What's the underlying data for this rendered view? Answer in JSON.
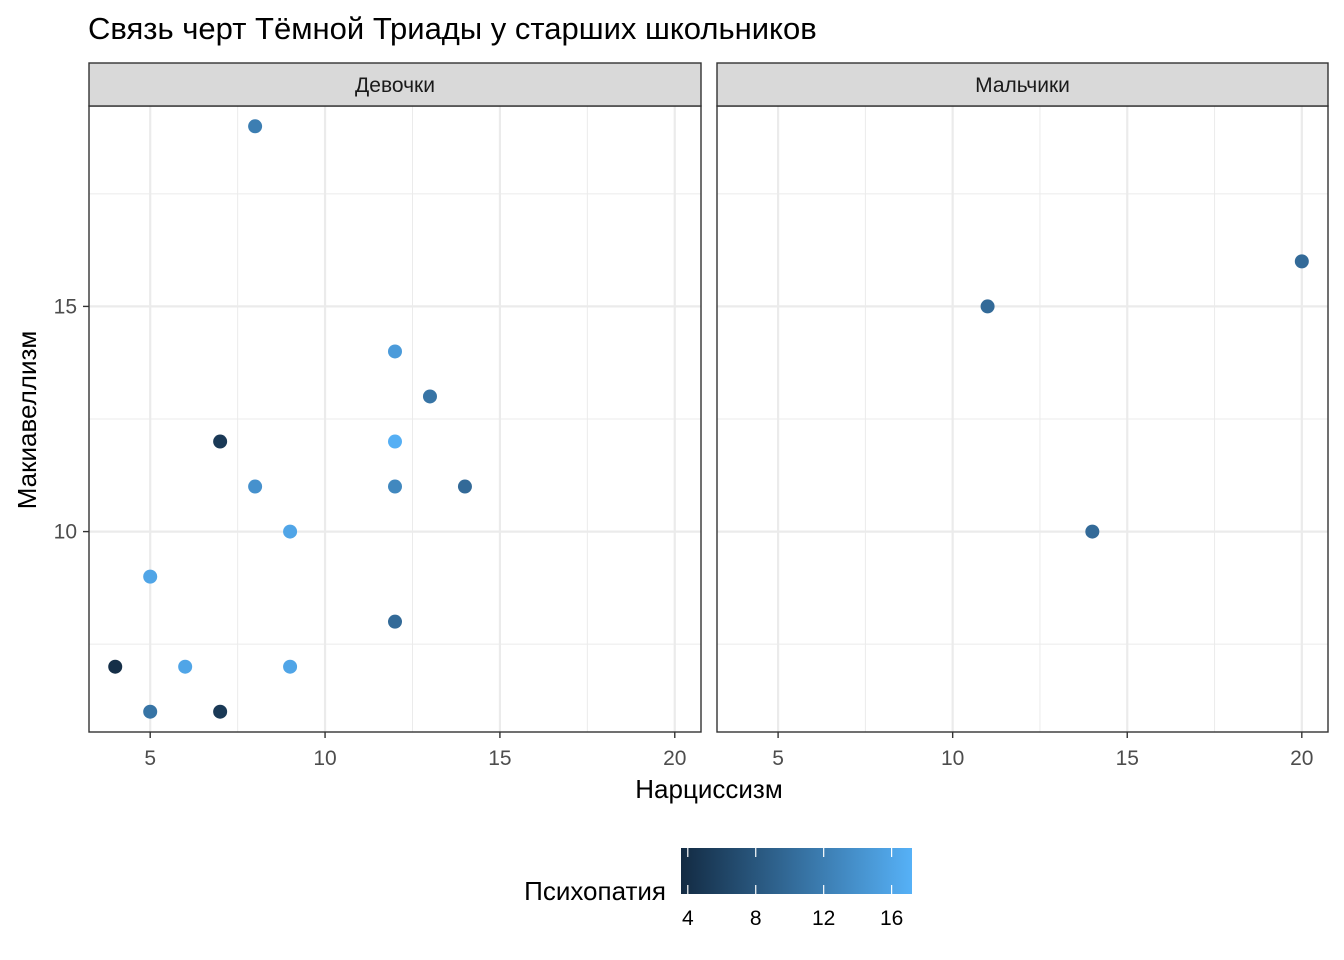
{
  "chart_data": {
    "type": "scatter",
    "title": "Связь черт Тёмной Триады у старших школьников",
    "xlabel": "Нарциссизм",
    "ylabel": "Макиавеллизм",
    "xlim": [
      3.25,
      20.75
    ],
    "ylim": [
      5.55,
      19.45
    ],
    "x_ticks": [
      5,
      10,
      15,
      20
    ],
    "y_ticks": [
      10,
      15
    ],
    "grid": true,
    "facets": [
      {
        "label": "Девочки",
        "points": [
          {
            "x": 8,
            "y": 19,
            "color_value": 12
          },
          {
            "x": 12,
            "y": 14,
            "color_value": 15
          },
          {
            "x": 13,
            "y": 13,
            "color_value": 11
          },
          {
            "x": 7,
            "y": 12,
            "color_value": 5
          },
          {
            "x": 12,
            "y": 12,
            "color_value": 17
          },
          {
            "x": 8,
            "y": 11,
            "color_value": 14
          },
          {
            "x": 12,
            "y": 11,
            "color_value": 13
          },
          {
            "x": 14,
            "y": 11,
            "color_value": 10
          },
          {
            "x": 9,
            "y": 10,
            "color_value": 16
          },
          {
            "x": 5,
            "y": 9,
            "color_value": 16
          },
          {
            "x": 12,
            "y": 8,
            "color_value": 10
          },
          {
            "x": 4,
            "y": 7,
            "color_value": 4
          },
          {
            "x": 6,
            "y": 7,
            "color_value": 16
          },
          {
            "x": 9,
            "y": 7,
            "color_value": 16
          },
          {
            "x": 5,
            "y": 6,
            "color_value": 11
          },
          {
            "x": 7,
            "y": 6,
            "color_value": 5
          }
        ]
      },
      {
        "label": "Мальчики",
        "points": [
          {
            "x": 11,
            "y": 15,
            "color_value": 10
          },
          {
            "x": 20,
            "y": 16,
            "color_value": 10
          },
          {
            "x": 14,
            "y": 10,
            "color_value": 10
          }
        ]
      }
    ],
    "legend": {
      "title": "Психопатия",
      "position": "bottom",
      "ticks": [
        4,
        8,
        12,
        16
      ],
      "range": [
        3.6,
        17.2
      ],
      "color_low": "#132B43",
      "color_high": "#56B1F7"
    }
  }
}
